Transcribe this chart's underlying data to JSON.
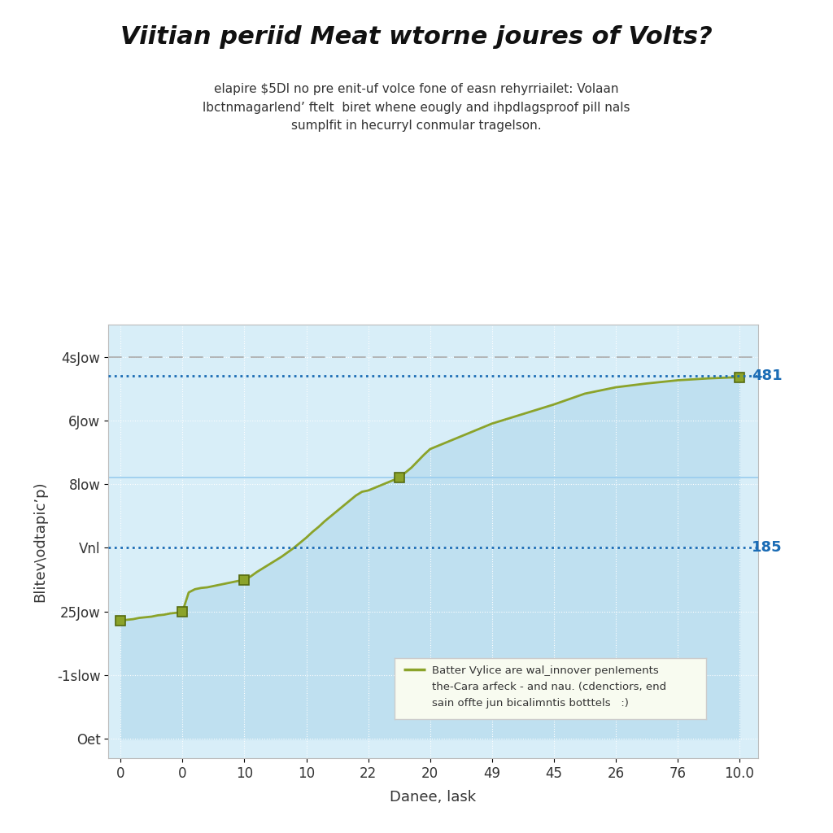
{
  "title": "Viitian periid Meat wtorne joures of Volts?",
  "subtitle": "elapire $5DI no pre enit-uf volce fone of easn rehyrriailet: Volaan\nlbctnmagarlend’ ftelt  biret whene eougly and ihpdlagsproof pill nals\nsumplfit in hecurryl conmular tragelson.",
  "xlabel": "Danee, lask",
  "ylabel": "Blitev\\odtapic’p)",
  "x_tick_positions": [
    0,
    10,
    20,
    30,
    40,
    50,
    60,
    70,
    80,
    90,
    100
  ],
  "x_tick_labels": [
    "0",
    "0",
    "10",
    "10",
    "22",
    "20",
    "49",
    "45",
    "26",
    "76",
    "10.0"
  ],
  "y_tick_labels": [
    "Oet",
    "-1slow",
    "25Jow",
    "Vnl",
    "8low",
    "6Jow",
    "4sJow"
  ],
  "y_tick_positions": [
    0,
    1,
    2,
    3,
    4,
    5,
    6
  ],
  "hline1_y": 5.7,
  "hline1_label": "481",
  "hline2_y": 3.0,
  "hline2_label": "185",
  "solid_hline_y": 4.1,
  "hline_color": "#1B6CB5",
  "solid_hline_color": "#99CCEE",
  "line_color": "#8BA32A",
  "fill_color": "#BFE0F0",
  "marker_color": "#8BA32A",
  "bg_color": "#FFFFFF",
  "plot_bg": "#D8EEF8",
  "grid_color": "#FFFFFF",
  "legend_text": "Batter Vylice are wal_innover penIements\nthe-Cara arfeck - and nau. (cdenctiors, end\nsain offte jun bicalimntis botttels   :)",
  "x_data": [
    0,
    1,
    2,
    3,
    4,
    5,
    6,
    7,
    8,
    9,
    10,
    11,
    12,
    13,
    14,
    15,
    16,
    17,
    18,
    19,
    20,
    21,
    22,
    23,
    24,
    25,
    26,
    27,
    28,
    29,
    30,
    31,
    32,
    33,
    34,
    35,
    36,
    37,
    38,
    39,
    40,
    41,
    42,
    43,
    44,
    45,
    46,
    47,
    48,
    49,
    50,
    55,
    60,
    65,
    70,
    75,
    80,
    85,
    90,
    95,
    100
  ],
  "y_data": [
    1.85,
    1.87,
    1.88,
    1.9,
    1.91,
    1.92,
    1.94,
    1.95,
    1.97,
    1.98,
    2.0,
    2.3,
    2.35,
    2.37,
    2.38,
    2.4,
    2.42,
    2.44,
    2.46,
    2.48,
    2.5,
    2.55,
    2.62,
    2.68,
    2.74,
    2.8,
    2.86,
    2.93,
    3.0,
    3.08,
    3.16,
    3.25,
    3.33,
    3.42,
    3.5,
    3.58,
    3.66,
    3.74,
    3.82,
    3.88,
    3.9,
    3.94,
    3.98,
    4.02,
    4.06,
    4.1,
    4.18,
    4.26,
    4.36,
    4.46,
    4.55,
    4.75,
    4.95,
    5.1,
    5.25,
    5.42,
    5.52,
    5.58,
    5.63,
    5.66,
    5.68
  ],
  "marker_indices": [
    0,
    10,
    20,
    45,
    60
  ],
  "title_fontsize": 22,
  "subtitle_fontsize": 11,
  "axis_label_fontsize": 13,
  "tick_fontsize": 12
}
